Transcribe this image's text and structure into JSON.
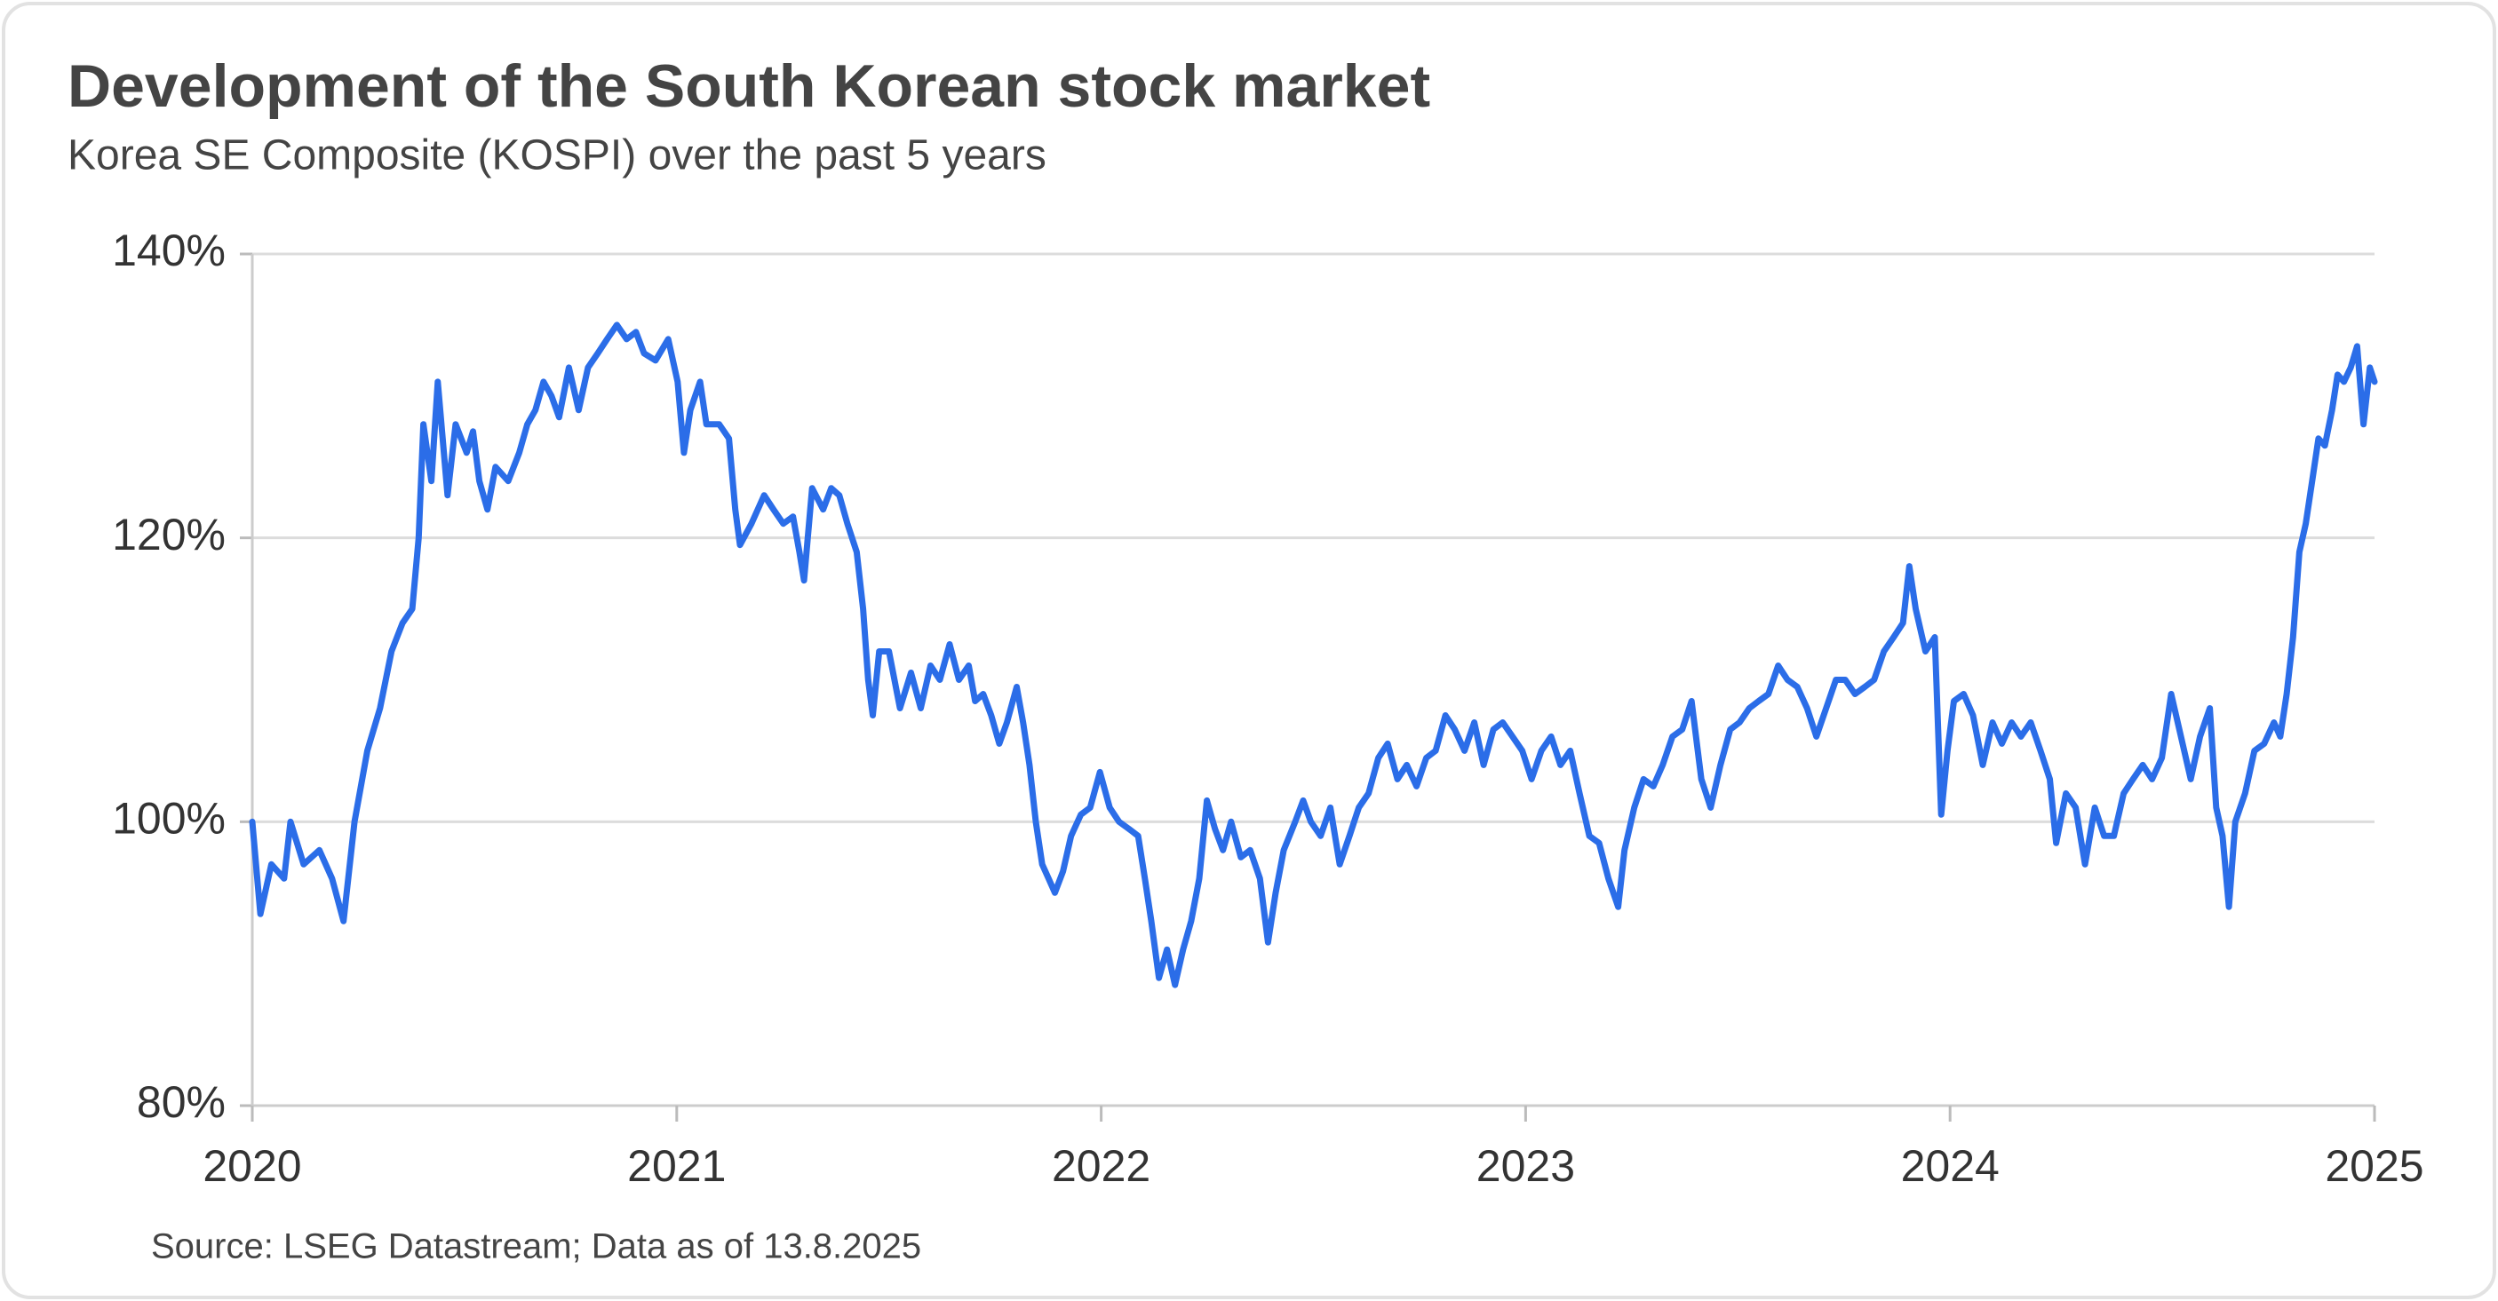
{
  "chart_data": {
    "type": "line",
    "title": "Development of the South Korean stock market",
    "subtitle": "Korea SE Composite (KOSPI) over the past 5 years",
    "source": "Source: LSEG Datastream; Data as of 13.8.2025",
    "color": "#2b6de8",
    "grid": true,
    "xlim": [
      2020,
      2025
    ],
    "xticks": [
      2020,
      2021,
      2022,
      2023,
      2024,
      2025
    ],
    "ylim": [
      80,
      140
    ],
    "yticks": [
      {
        "value": 80,
        "label": "80%"
      },
      {
        "value": 100,
        "label": "100%"
      },
      {
        "value": 120,
        "label": "120%"
      },
      {
        "value": 140,
        "label": "140%"
      }
    ],
    "x": [
      2020.0,
      2020.019,
      2020.045,
      2020.075,
      2020.09,
      2020.121,
      2020.158,
      2020.188,
      2020.215,
      2020.241,
      2020.271,
      2020.301,
      2020.328,
      2020.354,
      2020.377,
      2020.392,
      2020.403,
      2020.422,
      2020.437,
      2020.46,
      2020.479,
      2020.505,
      2020.52,
      2020.535,
      2020.554,
      2020.573,
      2020.603,
      2020.629,
      2020.648,
      2020.667,
      2020.686,
      2020.705,
      2020.723,
      2020.746,
      2020.769,
      2020.791,
      2020.814,
      2020.836,
      2020.859,
      2020.882,
      2020.904,
      2020.923,
      2020.95,
      2020.98,
      2021.002,
      2021.017,
      2021.032,
      2021.055,
      2021.07,
      2021.1,
      2021.123,
      2021.138,
      2021.149,
      2021.176,
      2021.206,
      2021.228,
      2021.251,
      2021.274,
      2021.289,
      2021.3,
      2021.319,
      2021.345,
      2021.364,
      2021.383,
      2021.402,
      2021.424,
      2021.439,
      2021.451,
      2021.462,
      2021.477,
      2021.5,
      2021.526,
      2021.552,
      2021.575,
      2021.598,
      2021.62,
      2021.643,
      2021.665,
      2021.688,
      2021.703,
      2021.722,
      2021.741,
      2021.76,
      2021.778,
      2021.801,
      2021.816,
      2021.831,
      2021.846,
      2021.861,
      2021.876,
      2021.891,
      2021.91,
      2021.929,
      2021.952,
      2021.974,
      2021.997,
      2022.02,
      2022.042,
      2022.065,
      2022.087,
      2022.103,
      2022.118,
      2022.136,
      2022.155,
      2022.174,
      2022.193,
      2022.212,
      2022.231,
      2022.249,
      2022.268,
      2022.287,
      2022.306,
      2022.329,
      2022.351,
      2022.374,
      2022.393,
      2022.411,
      2022.43,
      2022.457,
      2022.476,
      2022.494,
      2022.517,
      2022.54,
      2022.562,
      2022.585,
      2022.607,
      2022.63,
      2022.653,
      2022.675,
      2022.698,
      2022.72,
      2022.743,
      2022.766,
      2022.788,
      2022.811,
      2022.833,
      2022.856,
      2022.879,
      2022.901,
      2022.924,
      2022.946,
      2022.969,
      2022.992,
      2023.014,
      2023.037,
      2023.06,
      2023.082,
      2023.105,
      2023.127,
      2023.15,
      2023.173,
      2023.195,
      2023.218,
      2023.233,
      2023.256,
      2023.278,
      2023.301,
      2023.323,
      2023.346,
      2023.369,
      2023.391,
      2023.414,
      2023.436,
      2023.459,
      2023.482,
      2023.504,
      2023.527,
      2023.549,
      2023.572,
      2023.595,
      2023.617,
      2023.64,
      2023.663,
      2023.685,
      2023.708,
      2023.731,
      2023.753,
      2023.776,
      2023.799,
      2023.821,
      2023.844,
      2023.867,
      2023.889,
      2023.904,
      2023.919,
      2023.942,
      2023.964,
      2023.979,
      2023.994,
      2024.009,
      2024.032,
      2024.054,
      2024.077,
      2024.1,
      2024.122,
      2024.145,
      2024.167,
      2024.19,
      2024.213,
      2024.235,
      2024.25,
      2024.273,
      2024.296,
      2024.318,
      2024.341,
      2024.363,
      2024.386,
      2024.409,
      2024.431,
      2024.454,
      2024.476,
      2024.499,
      2024.521,
      2024.544,
      2024.567,
      2024.589,
      2024.612,
      2024.627,
      2024.642,
      2024.657,
      2024.672,
      2024.695,
      2024.717,
      2024.74,
      2024.763,
      2024.778,
      2024.793,
      2024.808,
      2024.823,
      2024.838,
      2024.853,
      2024.868,
      2024.883,
      2024.9,
      2024.913,
      2024.928,
      2024.944,
      2024.959,
      2024.974,
      2024.989,
      2025.0
    ],
    "values": [
      100,
      93.5,
      97,
      96,
      100,
      97,
      98,
      96,
      93,
      100,
      105,
      108,
      112,
      114,
      115,
      120,
      128,
      124,
      131,
      123,
      128,
      126,
      127.5,
      124,
      122,
      125,
      124,
      126,
      128,
      129,
      131,
      130,
      128.5,
      132,
      129,
      132,
      133,
      134,
      135,
      134,
      134.5,
      133,
      132.5,
      134,
      131,
      126,
      129,
      131,
      128,
      128,
      127,
      122,
      119.5,
      121,
      123,
      122,
      121,
      121.5,
      119,
      117,
      123.5,
      122,
      123.5,
      123,
      121,
      119,
      115,
      110,
      107.5,
      112,
      112,
      108,
      110.5,
      108,
      111,
      110,
      112.5,
      110,
      111,
      108.5,
      109,
      107.5,
      105.5,
      107,
      109.5,
      107,
      104,
      100,
      97,
      96,
      95,
      96.5,
      99,
      100.5,
      101,
      103.5,
      101,
      100,
      99.5,
      99,
      96,
      93,
      89,
      91,
      88.5,
      91,
      93,
      96,
      101.5,
      99.5,
      98,
      100,
      97.5,
      98,
      96,
      91.5,
      95,
      98,
      100,
      101.5,
      100,
      99,
      101,
      97,
      99,
      101,
      102,
      104.5,
      105.5,
      103,
      104,
      102.5,
      104.5,
      105,
      107.5,
      106.5,
      105,
      107,
      104,
      106.5,
      107,
      106,
      105,
      103,
      105,
      106,
      104,
      105,
      102,
      99,
      98.5,
      96,
      94,
      98,
      101,
      103,
      102.5,
      104,
      106,
      106.5,
      108.5,
      103,
      101,
      104,
      106.5,
      107,
      108,
      108.5,
      109,
      111,
      110,
      109.5,
      108,
      106,
      108,
      110,
      110,
      109,
      109.5,
      110,
      112,
      113,
      114,
      118,
      115,
      112,
      113,
      100.5,
      105,
      108.5,
      109,
      107.5,
      104,
      107,
      105.5,
      107,
      106,
      107,
      105,
      103,
      98.5,
      102,
      101,
      97,
      101,
      99,
      99,
      102,
      103,
      104,
      103,
      104.5,
      109,
      106,
      103,
      106,
      108,
      101,
      99,
      94,
      100,
      102,
      105,
      105.5,
      107,
      106,
      109,
      113,
      119,
      121,
      124,
      127,
      126.5,
      129,
      131.5,
      131,
      132,
      133.5,
      128,
      132,
      131
    ]
  }
}
